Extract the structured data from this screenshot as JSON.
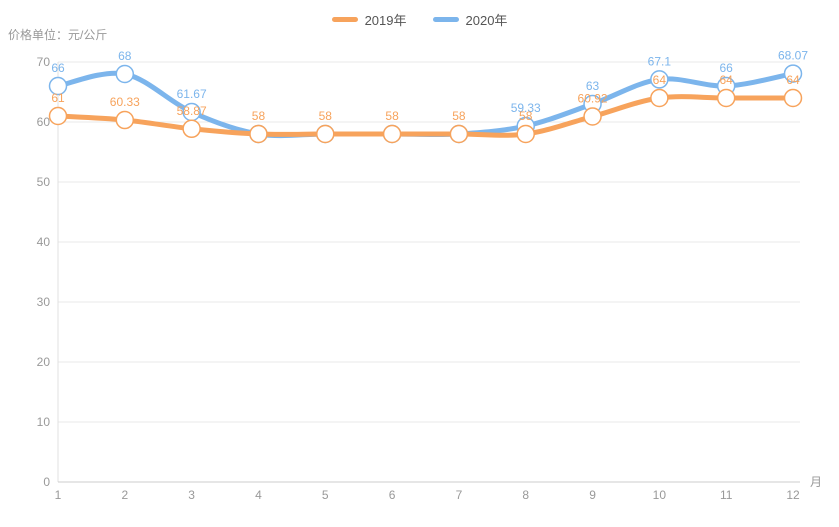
{
  "legend": {
    "items": [
      {
        "label": "2019年",
        "color": "#f7a35c"
      },
      {
        "label": "2020年",
        "color": "#7cb5ec"
      }
    ]
  },
  "chart_data": {
    "type": "line",
    "title": "",
    "y_axis_name": "价格单位：元/公斤",
    "x_axis_name": "月",
    "categories": [
      "1",
      "2",
      "3",
      "4",
      "5",
      "6",
      "7",
      "8",
      "9",
      "10",
      "11",
      "12"
    ],
    "yticks": [
      0,
      10,
      20,
      30,
      40,
      50,
      60,
      70
    ],
    "ylim": [
      0,
      70
    ],
    "grid": true,
    "legend_position": "top-center",
    "smooth": true,
    "series": [
      {
        "name": "2019年",
        "color": "#f7a35c",
        "values": [
          61,
          60.33,
          58.87,
          58,
          58,
          58,
          58,
          58,
          60.92,
          64,
          64,
          64
        ],
        "labels": [
          "61",
          "60.33",
          "58.87",
          "58",
          "58",
          "58",
          "58",
          "58",
          "60.92",
          "64",
          "64",
          "64"
        ]
      },
      {
        "name": "2020年",
        "color": "#7cb5ec",
        "values": [
          66,
          68,
          61.67,
          58,
          58,
          58,
          58,
          59.33,
          63,
          67.1,
          66,
          68.07
        ],
        "labels": [
          "66",
          "68",
          "61.67",
          "",
          "",
          "",
          "",
          "59.33",
          "63",
          "67.1",
          "66",
          "68.07"
        ]
      }
    ]
  },
  "palette": {
    "grid_color": "#e8e8e8",
    "x_axis_line_color": "#cccccc",
    "y_axis_line_color": "#e0e0e0",
    "tick_text_color": "#999999",
    "marker_fill": "#ffffff",
    "background": "#ffffff"
  }
}
